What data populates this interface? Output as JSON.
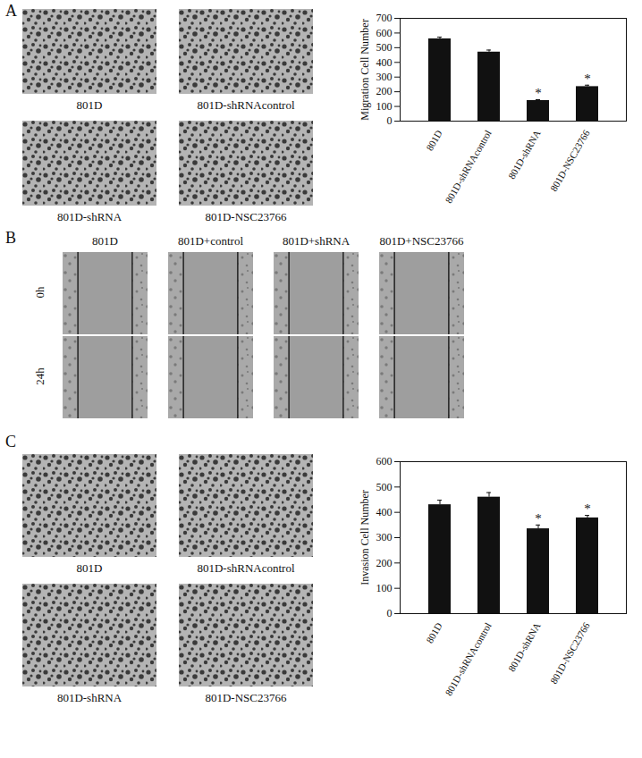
{
  "panels": [
    {
      "letter": "A",
      "images": [
        "801D",
        "801D-shRNAcontrol",
        "801D-shRNA",
        "801D-NSC23766"
      ]
    },
    {
      "letter": "B",
      "columns": [
        "801D",
        "801D+control",
        "801D+shRNA",
        "801D+NSC23766"
      ],
      "rows": [
        "0h",
        "24h"
      ]
    },
    {
      "letter": "C",
      "images": [
        "801D",
        "801D-shRNAcontrol",
        "801D-shRNA",
        "801D-NSC23766"
      ]
    }
  ],
  "chart_data": [
    {
      "type": "bar",
      "ylabel": "Migration Cell Number",
      "categories": [
        "801D",
        "801D-shRNAcontrol",
        "801D-shRNA",
        "801D-NSC23766"
      ],
      "values": [
        560,
        470,
        140,
        235
      ],
      "errors": [
        12,
        14,
        6,
        10
      ],
      "annotations": [
        null,
        null,
        "*",
        "*"
      ],
      "color": "#111111",
      "ylim": [
        0,
        700
      ],
      "yticks": [
        0,
        100,
        200,
        300,
        400,
        500,
        600,
        700
      ]
    },
    {
      "type": "bar",
      "ylabel": "Invasion Cell Number",
      "categories": [
        "801D",
        "801D-shRNAcontrol",
        "801D-shRNA",
        "801D-NSC23766"
      ],
      "values": [
        430,
        460,
        335,
        378
      ],
      "errors": [
        18,
        18,
        15,
        10
      ],
      "annotations": [
        null,
        null,
        "*",
        "*"
      ],
      "color": "#111111",
      "ylim": [
        0,
        600
      ],
      "yticks": [
        0,
        100,
        200,
        300,
        400,
        500,
        600
      ]
    }
  ]
}
